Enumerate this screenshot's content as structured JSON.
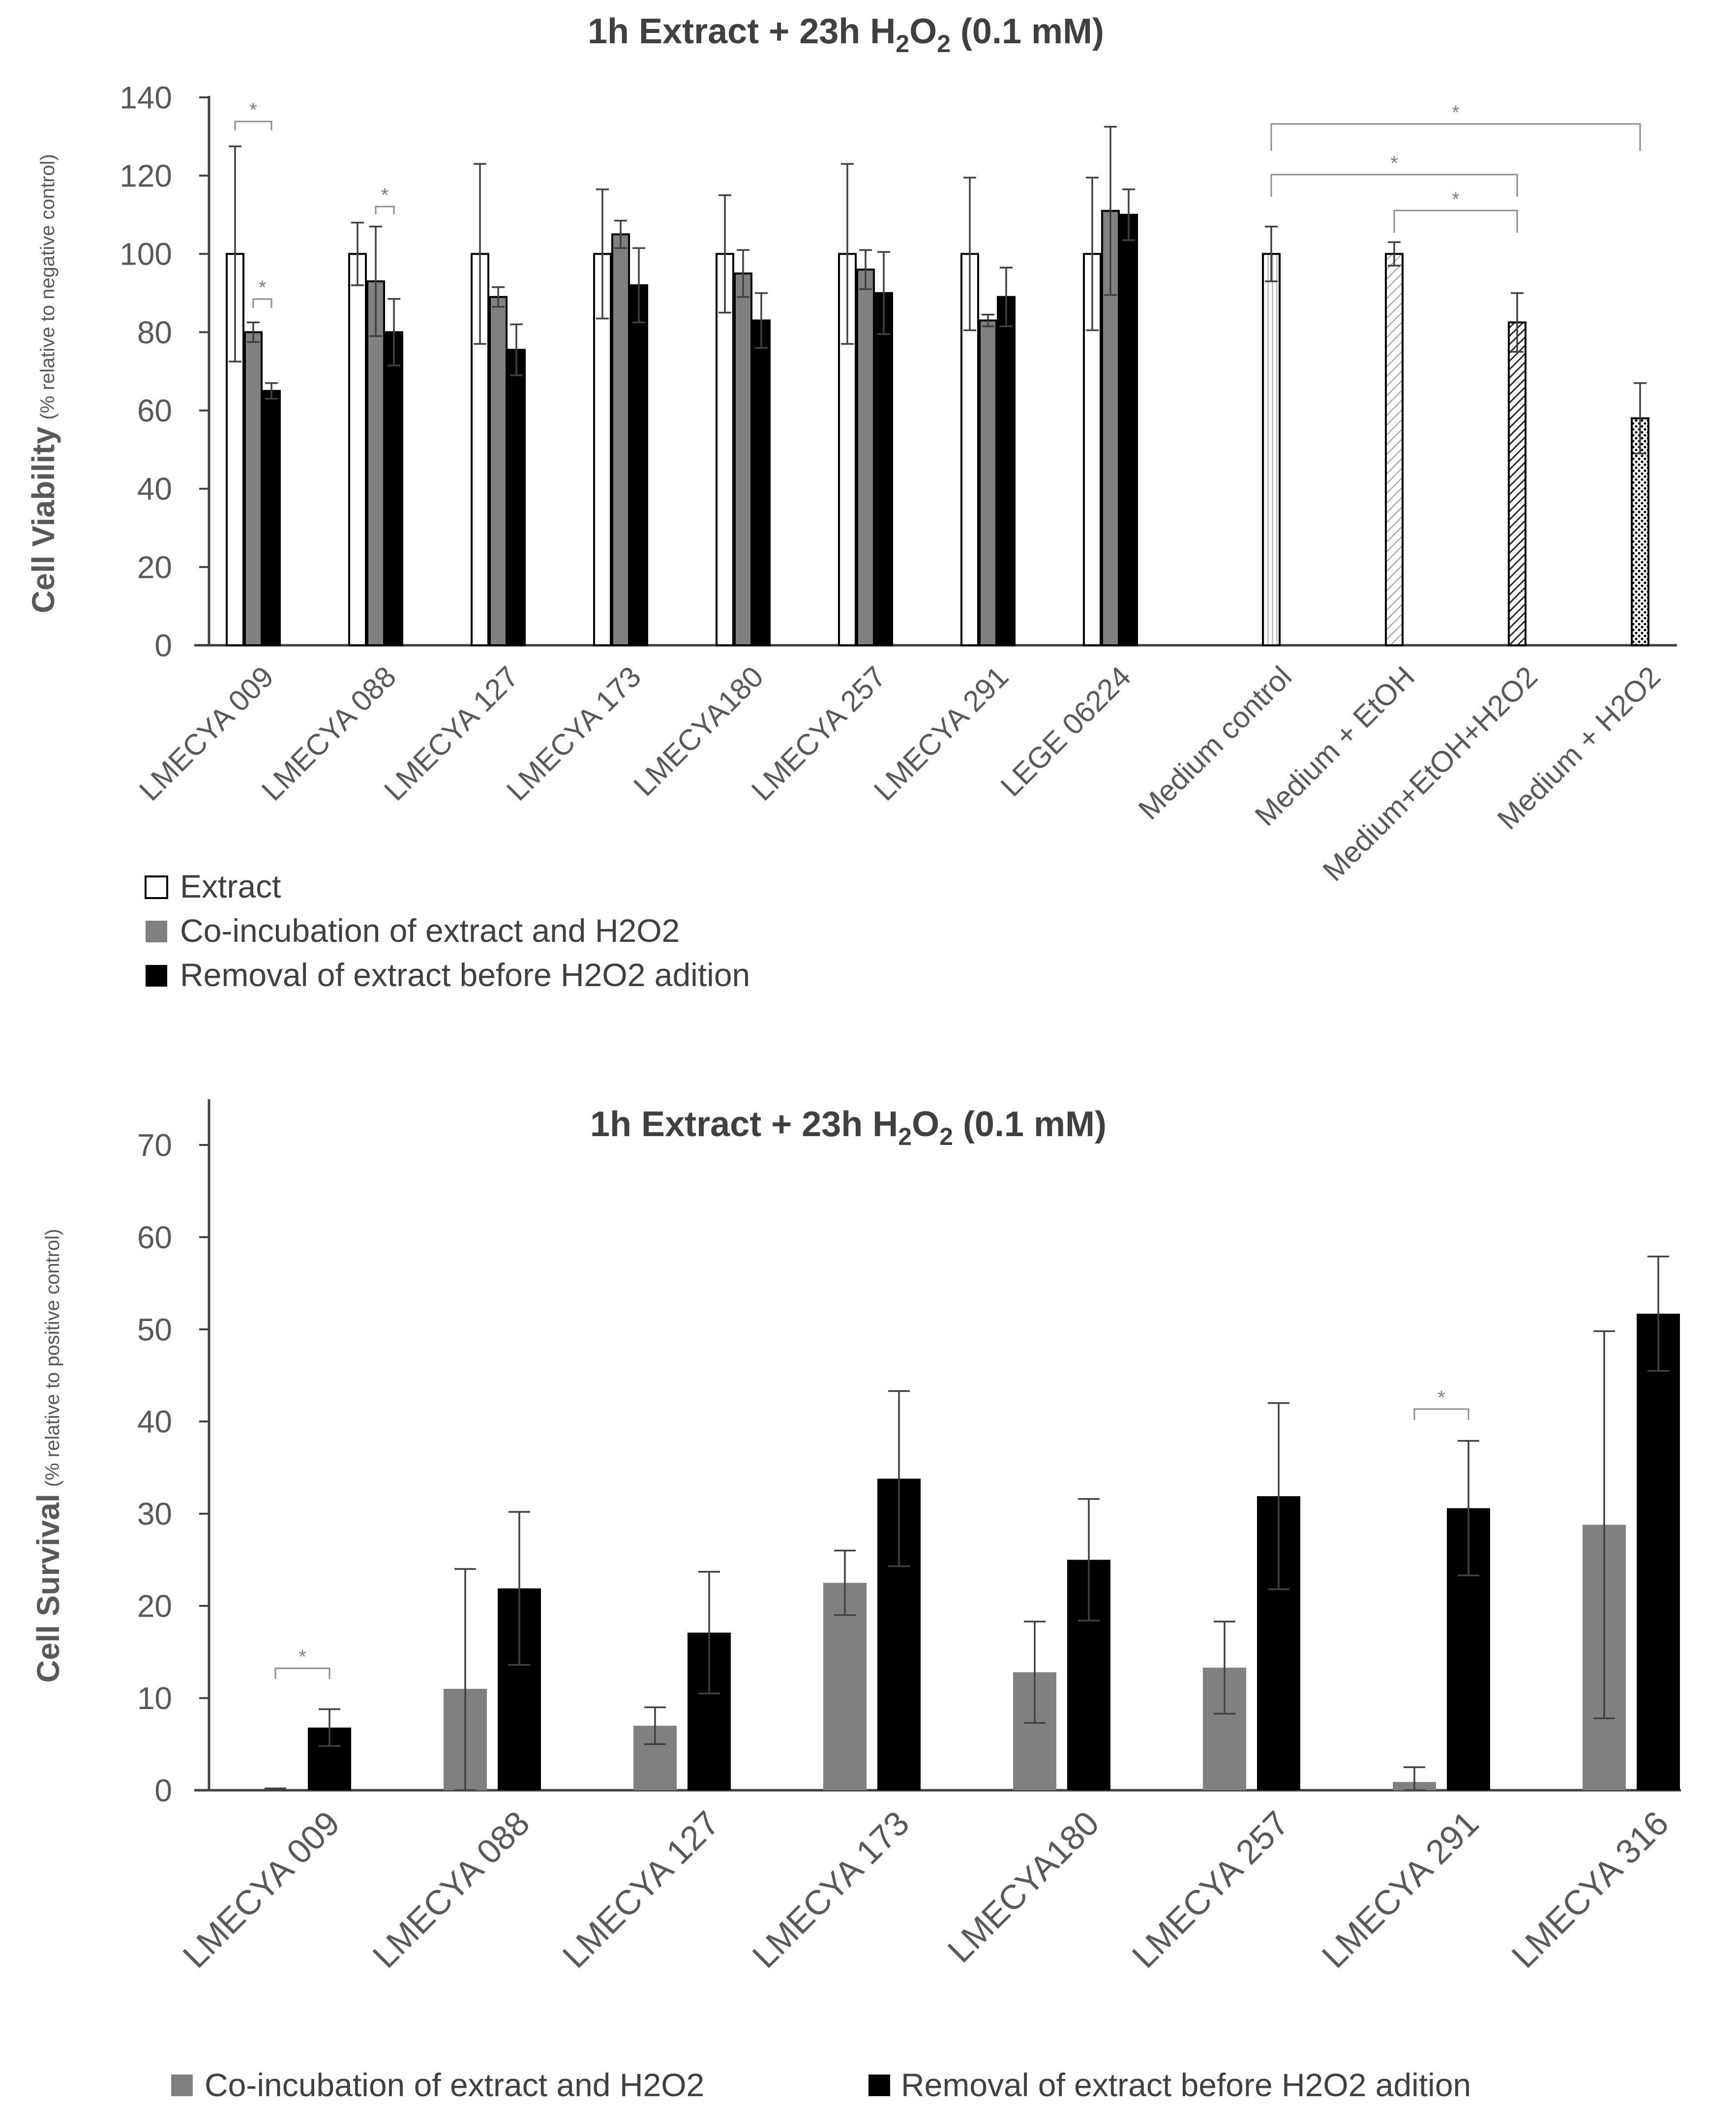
{
  "colors": {
    "extract": "#ffffff",
    "coincubation": "#808080",
    "removal": "#000000",
    "bar_edge": "#000000",
    "axis": "#404040",
    "text": "#404040",
    "significance": "#8c8c8c"
  },
  "chart_data": [
    {
      "type": "bar",
      "title": {
        "prefix": "1h Extract + 23h H",
        "sub1": "2",
        "mid": "O",
        "sub2": "2",
        "suffix": " (0.1 mM)"
      },
      "ylabel": "Cell Viability",
      "ylabel_sub": "(% relative to negative control)",
      "xlabel": "",
      "ylim": [
        0,
        140
      ],
      "yticks": [
        0,
        20,
        40,
        60,
        80,
        100,
        120,
        140
      ],
      "grid": false,
      "categories": [
        "LMECYA 009",
        "LMECYA 088",
        "LMECYA 127",
        "LMECYA 173",
        "LMECYA180",
        "LMECYA 257",
        "LMECYA 291",
        "LEGE 06224"
      ],
      "series": [
        {
          "name": "Extract",
          "values": [
            100,
            100,
            100,
            100,
            100,
            100,
            100,
            100
          ],
          "errors": [
            27.5,
            8,
            23,
            16.5,
            15,
            23,
            19.5,
            19.5
          ]
        },
        {
          "name": "Co-incubation of extract and H2O2",
          "values": [
            80,
            93,
            89,
            105,
            95,
            96,
            83,
            111
          ],
          "errors": [
            2.5,
            14,
            2.5,
            3.5,
            6,
            5,
            1.5,
            21.5
          ]
        },
        {
          "name": "Removal of extract before H2O2 adition",
          "values": [
            65,
            80,
            75.5,
            92,
            83,
            90,
            89,
            110
          ],
          "errors": [
            2,
            8.5,
            6.5,
            9.5,
            7,
            10.5,
            7.5,
            6.5
          ]
        }
      ],
      "controls": {
        "categories": [
          "Medium control",
          "Medium + EtOH",
          "Medium+EtOH+H2O2",
          "Medium + H2O2"
        ],
        "values": [
          100,
          100,
          82.5,
          58
        ],
        "errors": [
          7,
          3,
          7.5,
          9
        ],
        "patterns": [
          "pat-vert",
          "pat-diag-light",
          "pat-diag-dark",
          "pat-dots"
        ]
      },
      "significance": [
        {
          "label": "*",
          "group": 0,
          "from": "extract",
          "to": "removal"
        },
        {
          "label": "*",
          "group": 0,
          "from": "coincubation",
          "to": "removal"
        },
        {
          "label": "*",
          "group": 1,
          "from": "coincubation",
          "to": "removal"
        },
        {
          "label": "*",
          "from_control": 0,
          "to_control": 3
        },
        {
          "label": "*",
          "from_control": 0,
          "to_control": 2
        },
        {
          "label": "*",
          "from_control": 1,
          "to_control": 2
        }
      ],
      "legend": [
        "Extract",
        "Co-incubation of extract and H2O2",
        "Removal of extract before H2O2 adition"
      ]
    },
    {
      "type": "bar",
      "title": {
        "prefix": "1h Extract + 23h H",
        "sub1": "2",
        "mid": "O",
        "sub2": "2",
        "suffix": " (0.1 mM)"
      },
      "ylabel": "Cell Survival",
      "ylabel_sub": "(% relative to positive control)",
      "xlabel": "",
      "ylim": [
        0,
        75
      ],
      "yticks": [
        0,
        10,
        20,
        30,
        40,
        50,
        60,
        70
      ],
      "grid": false,
      "categories": [
        "LMECYA 009",
        "LMECYA 088",
        "LMECYA 127",
        "LMECYA 173",
        "LMECYA180",
        "LMECYA 257",
        "LMECYA 291",
        "LMECYA 316"
      ],
      "series": [
        {
          "name": "Co-incubation of extract and H2O2",
          "values": [
            0,
            11,
            7,
            22.5,
            12.8,
            13.3,
            0.9,
            28.8
          ],
          "errors": [
            0.2,
            13,
            2,
            3.5,
            5.5,
            5,
            1.6,
            21
          ]
        },
        {
          "name": "Removal of extract before H2O2 adition",
          "values": [
            6.8,
            21.9,
            17.1,
            33.8,
            25,
            31.9,
            30.6,
            51.7
          ],
          "errors": [
            2,
            8.3,
            6.6,
            9.5,
            6.6,
            10.1,
            7.3,
            6.2
          ]
        }
      ],
      "significance": [
        {
          "label": "*",
          "group": 0,
          "from": "coincubation",
          "to": "removal"
        },
        {
          "label": "*",
          "group": 6,
          "from": "coincubation",
          "to": "removal"
        }
      ],
      "legend": [
        "Co-incubation of extract and H2O2",
        "Removal of extract before H2O2 adition"
      ]
    }
  ]
}
